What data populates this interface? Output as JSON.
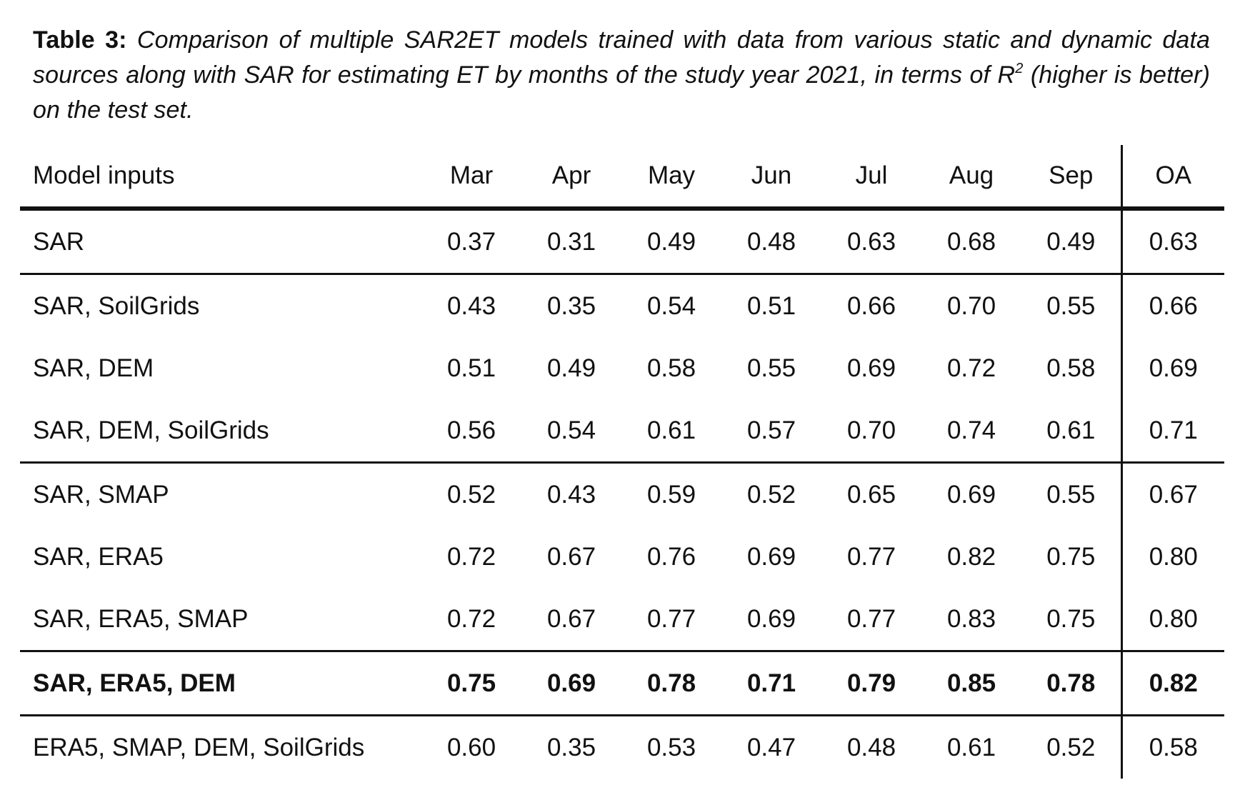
{
  "caption": {
    "label": "Table 3:",
    "text": "Comparison of multiple SAR2ET models trained with data from various static and dynamic data sources along with SAR for estimating ET by months of the study year 2021, in terms of R",
    "superscript": "2",
    "text_after": "(higher is better) on the test set."
  },
  "table": {
    "header": {
      "name": "Model inputs",
      "months": [
        "Mar",
        "Apr",
        "May",
        "Jun",
        "Jul",
        "Aug",
        "Sep"
      ],
      "overall": "OA"
    },
    "rows": [
      {
        "name": "SAR",
        "values": [
          "0.37",
          "0.31",
          "0.49",
          "0.48",
          "0.63",
          "0.68",
          "0.49"
        ],
        "oa": "0.63"
      },
      {
        "name": "SAR, SoilGrids",
        "values": [
          "0.43",
          "0.35",
          "0.54",
          "0.51",
          "0.66",
          "0.70",
          "0.55"
        ],
        "oa": "0.66"
      },
      {
        "name": "SAR, DEM",
        "values": [
          "0.51",
          "0.49",
          "0.58",
          "0.55",
          "0.69",
          "0.72",
          "0.58"
        ],
        "oa": "0.69"
      },
      {
        "name": "SAR, DEM, SoilGrids",
        "values": [
          "0.56",
          "0.54",
          "0.61",
          "0.57",
          "0.70",
          "0.74",
          "0.61"
        ],
        "oa": "0.71"
      },
      {
        "name": "SAR, SMAP",
        "values": [
          "0.52",
          "0.43",
          "0.59",
          "0.52",
          "0.65",
          "0.69",
          "0.55"
        ],
        "oa": "0.67"
      },
      {
        "name": "SAR, ERA5",
        "values": [
          "0.72",
          "0.67",
          "0.76",
          "0.69",
          "0.77",
          "0.82",
          "0.75"
        ],
        "oa": "0.80"
      },
      {
        "name": "SAR, ERA5, SMAP",
        "values": [
          "0.72",
          "0.67",
          "0.77",
          "0.69",
          "0.77",
          "0.83",
          "0.75"
        ],
        "oa": "0.80"
      },
      {
        "name": "SAR, ERA5, DEM",
        "values": [
          "0.75",
          "0.69",
          "0.78",
          "0.71",
          "0.79",
          "0.85",
          "0.78"
        ],
        "oa": "0.82"
      },
      {
        "name": "ERA5, SMAP, DEM, SoilGrids",
        "values": [
          "0.60",
          "0.35",
          "0.53",
          "0.47",
          "0.48",
          "0.61",
          "0.52"
        ],
        "oa": "0.58"
      }
    ]
  }
}
